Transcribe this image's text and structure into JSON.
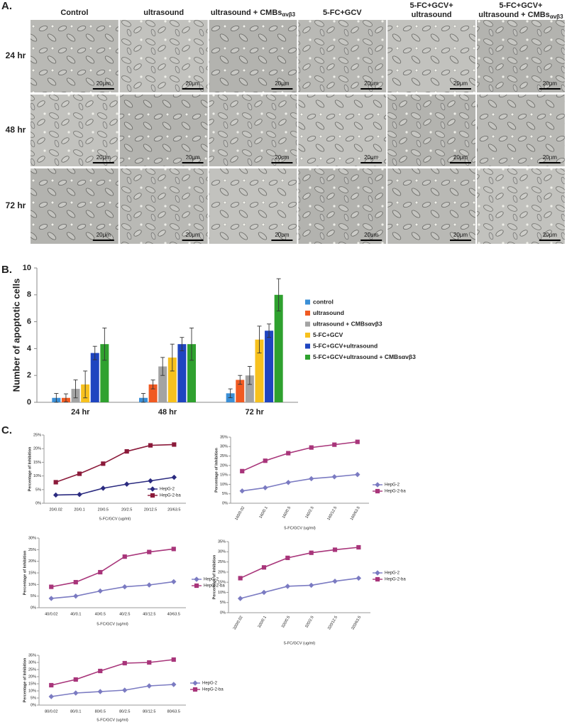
{
  "panel_labels": [
    "A.",
    "B.",
    "C."
  ],
  "panel_a": {
    "columns": [
      {
        "lines": [
          "Control"
        ]
      },
      {
        "lines": [
          "ultrasound"
        ]
      },
      {
        "lines": [
          "ultrasound + CMBs"
        ],
        "sub": "αvβ3"
      },
      {
        "lines": [
          "5-FC+GCV"
        ]
      },
      {
        "lines": [
          "5-FC+GCV+",
          "ultrasound"
        ]
      },
      {
        "lines": [
          "5-FC+GCV+",
          "ultrasound + CMBs"
        ],
        "sub": "αvβ3"
      }
    ],
    "rows": [
      "24 hr",
      "48 hr",
      "72 hr"
    ],
    "scale_bar": "20μm"
  },
  "chart_data": [
    {
      "type": "bar",
      "y_label": "Number of apoptotic cells",
      "categories": [
        "24 hr",
        "48 hr",
        "72 hr"
      ],
      "ylim": [
        0,
        10
      ],
      "yticks": [
        0,
        2,
        4,
        6,
        8,
        10
      ],
      "series": [
        {
          "name": "control",
          "color": "#3b8fd6",
          "values": [
            0.33,
            0.33,
            0.67
          ],
          "errors": [
            0.33,
            0.33,
            0.33
          ]
        },
        {
          "name": "ultrasound",
          "color": "#f05a22",
          "values": [
            0.33,
            1.33,
            1.67
          ],
          "errors": [
            0.3,
            0.33,
            0.33
          ]
        },
        {
          "name": "ultrasound + CMBsαvβ3",
          "color": "#a3a3a3",
          "values": [
            1.0,
            2.67,
            2.0
          ],
          "errors": [
            0.67,
            0.67,
            0.67
          ]
        },
        {
          "name": "5-FC+GCV",
          "color": "#f7c11e",
          "values": [
            1.33,
            3.33,
            4.67
          ],
          "errors": [
            1.0,
            1.0,
            1.0
          ]
        },
        {
          "name": "5-FC+GCV+ultrasound",
          "color": "#1f45c0",
          "values": [
            3.67,
            4.33,
            5.33
          ],
          "errors": [
            0.5,
            0.5,
            0.5
          ]
        },
        {
          "name": "5-FC+GCV+ultrasound + CMBsαvβ3",
          "color": "#2fa12f",
          "values": [
            4.33,
            4.33,
            8.0
          ],
          "errors": [
            1.2,
            1.2,
            1.2
          ]
        }
      ]
    },
    {
      "type": "line",
      "x_label": "5-FC/GCV (ug/ml)",
      "y_label": "Percentage of Inhibition",
      "categories": [
        "20/0.02",
        "20/0.1",
        "20/0.5",
        "20/2.5",
        "20/12.5",
        "20/63.5"
      ],
      "ylim": [
        0,
        25
      ],
      "yticks": [
        {
          "value": 0,
          "label": "0%"
        },
        {
          "value": 5,
          "label": "5%"
        },
        {
          "value": 10,
          "label": "10%"
        },
        {
          "value": 15,
          "label": "15%"
        },
        {
          "value": 20,
          "label": "20%"
        },
        {
          "value": 25,
          "label": "25%"
        }
      ],
      "series": [
        {
          "name": "HepG-2",
          "color": "#2b2b80",
          "marker": "diamond",
          "values": [
            3.0,
            3.2,
            5.5,
            7.0,
            8.2,
            9.5
          ]
        },
        {
          "name": "HepG-2-ba",
          "color": "#8b1a3a",
          "marker": "square",
          "values": [
            7.7,
            10.8,
            14.5,
            19.0,
            21.2,
            21.5
          ]
        }
      ]
    },
    {
      "type": "line",
      "x_label": "5-FC/GCV  (ug/ml)",
      "y_label": "Percentage of Inhibition",
      "categories": [
        "160/0.02",
        "160/0.1",
        "160/0.5",
        "160/2.5",
        "160/12.5",
        "160/63.5"
      ],
      "ylim": [
        0,
        35
      ],
      "yticks": [
        {
          "value": 0,
          "label": "0%"
        },
        {
          "value": 5,
          "label": "5%"
        },
        {
          "value": 10,
          "label": "10%"
        },
        {
          "value": 15,
          "label": "15%"
        },
        {
          "value": 20,
          "label": "20%"
        },
        {
          "value": 25,
          "label": "25%"
        },
        {
          "value": 30,
          "label": "30%"
        },
        {
          "value": 35,
          "label": "35%"
        }
      ],
      "series": [
        {
          "name": "HepG-2",
          "color": "#7b7bc2",
          "marker": "diamond",
          "values": [
            6.5,
            8.2,
            11.0,
            13.0,
            14.0,
            15.2
          ]
        },
        {
          "name": "HepG-2-ba",
          "color": "#a8357a",
          "marker": "square",
          "values": [
            17.0,
            22.5,
            26.5,
            29.5,
            31.0,
            32.5
          ]
        }
      ]
    },
    {
      "type": "line",
      "x_label": "5-FC/GCV (ug/ml)",
      "y_label": "Percentage of Inhibition",
      "categories": [
        "40/0.02",
        "40/0.1",
        "40/0.5",
        "40/2.5",
        "40/12.5",
        "40/63.5"
      ],
      "ylim": [
        0,
        30
      ],
      "yticks": [
        {
          "value": 0,
          "label": "0%"
        },
        {
          "value": 5,
          "label": "5%"
        },
        {
          "value": 10,
          "label": "10%"
        },
        {
          "value": 15,
          "label": "15%"
        },
        {
          "value": 20,
          "label": "20%"
        },
        {
          "value": 25,
          "label": "25%"
        },
        {
          "value": 30,
          "label": "30%"
        }
      ],
      "series": [
        {
          "name": "HepG-2",
          "color": "#7b7bc2",
          "marker": "diamond",
          "values": [
            4.0,
            5.0,
            7.2,
            9.0,
            9.8,
            11.2
          ]
        },
        {
          "name": "HepG-2-ba",
          "color": "#a8357a",
          "marker": "square",
          "values": [
            9.0,
            11.0,
            15.3,
            22.0,
            24.0,
            25.3
          ]
        }
      ]
    },
    {
      "type": "line",
      "x_label": "5-FC/GCV  (ug/ml)",
      "y_label": "Percentage of Inhibition",
      "categories": [
        "320/0.02",
        "320/0.1",
        "320/0.5",
        "320/2.5",
        "320/12.5",
        "320/63.5"
      ],
      "ylim": [
        0,
        35
      ],
      "yticks": [
        {
          "value": 0,
          "label": "0%"
        },
        {
          "value": 5,
          "label": "5%"
        },
        {
          "value": 10,
          "label": "10%"
        },
        {
          "value": 15,
          "label": "15%"
        },
        {
          "value": 20,
          "label": "20%"
        },
        {
          "value": 25,
          "label": "25%"
        },
        {
          "value": 30,
          "label": "30%"
        },
        {
          "value": 35,
          "label": "35%"
        }
      ],
      "series": [
        {
          "name": "HepG-2",
          "color": "#7b7bc2",
          "marker": "diamond",
          "values": [
            7.0,
            10.0,
            13.0,
            13.5,
            15.5,
            17.0
          ]
        },
        {
          "name": "HepG-2-ba",
          "color": "#a8357a",
          "marker": "square",
          "values": [
            17.0,
            22.3,
            27.0,
            29.5,
            31.0,
            32.2
          ]
        }
      ]
    },
    {
      "type": "line",
      "x_label": "5-FC/GCV (ug/ml)",
      "y_label": "Percentage of Inhibition",
      "categories": [
        "80/0.02",
        "80/0.1",
        "80/0.5",
        "80/2.5",
        "80/12.5",
        "80/63.5"
      ],
      "ylim": [
        0,
        35
      ],
      "yticks": [
        {
          "value": 0,
          "label": "0%"
        },
        {
          "value": 5,
          "label": "5%"
        },
        {
          "value": 10,
          "label": "10%"
        },
        {
          "value": 15,
          "label": "15%"
        },
        {
          "value": 20,
          "label": "20%"
        },
        {
          "value": 25,
          "label": "25%"
        },
        {
          "value": 30,
          "label": "30%"
        },
        {
          "value": 35,
          "label": "35%"
        }
      ],
      "series": [
        {
          "name": "HepG-2",
          "color": "#7b7bc2",
          "marker": "diamond",
          "values": [
            6.0,
            8.5,
            9.5,
            10.5,
            13.5,
            14.5
          ]
        },
        {
          "name": "HepG-2-ba",
          "color": "#a8357a",
          "marker": "square",
          "values": [
            14.0,
            18.0,
            24.0,
            29.5,
            30.0,
            32.0
          ]
        }
      ]
    }
  ]
}
